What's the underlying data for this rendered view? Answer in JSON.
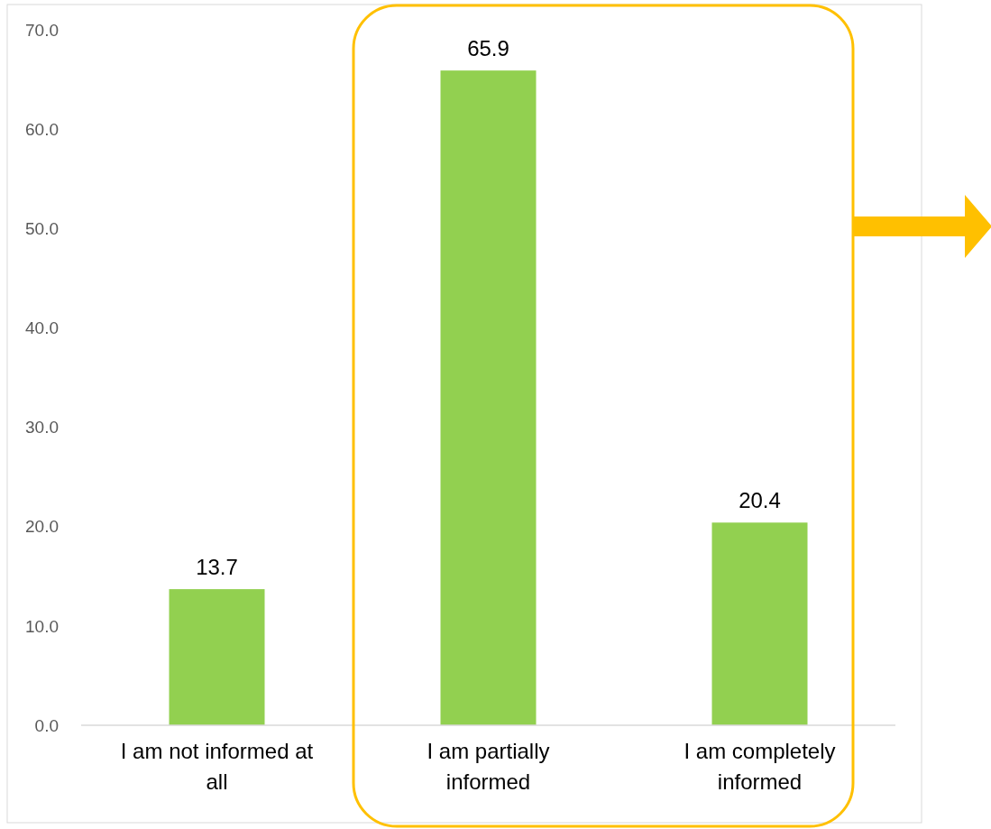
{
  "chart_data": {
    "type": "bar",
    "categories": [
      "I am not informed at all",
      "I am partially informed",
      "I am completely informed"
    ],
    "values": [
      13.7,
      65.9,
      20.4
    ],
    "color": "#92d050",
    "ylim": [
      0,
      70
    ],
    "yticks": [
      {
        "value": 0,
        "label": "0.0"
      },
      {
        "value": 10,
        "label": "10.0"
      },
      {
        "value": 20,
        "label": "20.0"
      },
      {
        "value": 30,
        "label": "30.0"
      },
      {
        "value": 40,
        "label": "40.0"
      },
      {
        "value": 50,
        "label": "50.0"
      },
      {
        "value": 60,
        "label": "60.0"
      },
      {
        "value": 70,
        "label": "70.0"
      }
    ],
    "data_labels": true
  }
}
